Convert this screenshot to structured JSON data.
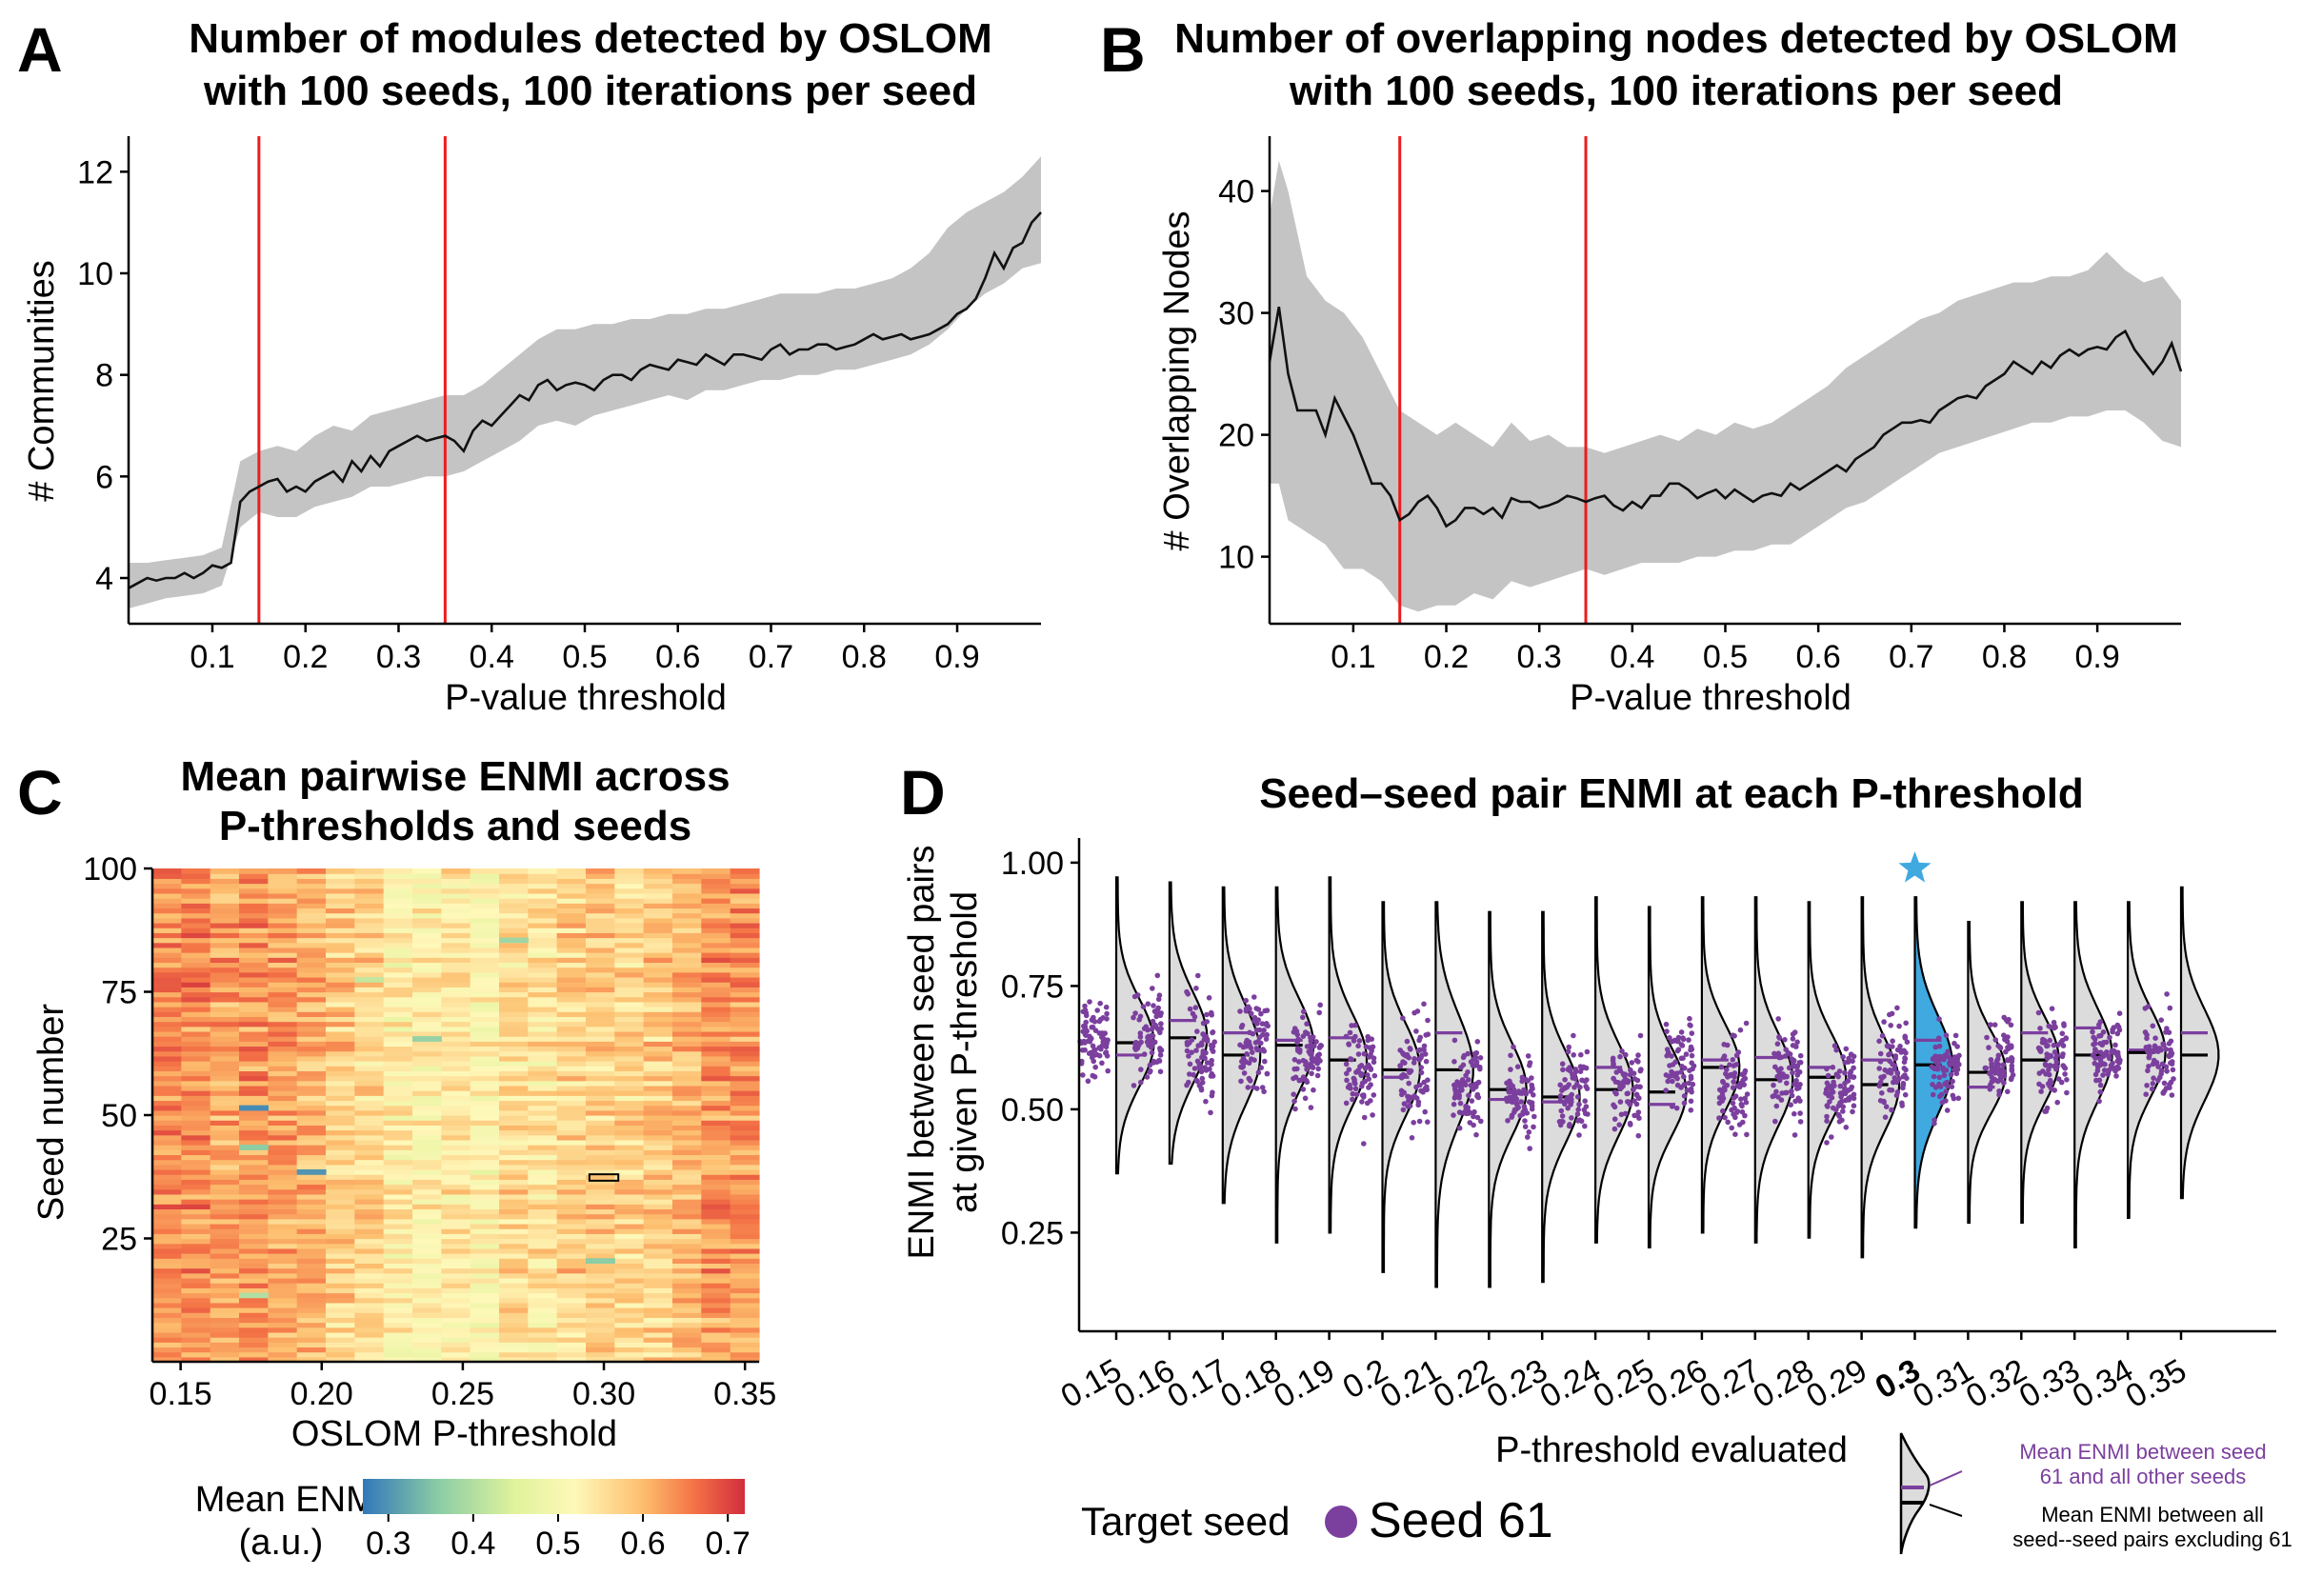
{
  "chart_data": [
    {
      "panel": "A",
      "type": "line",
      "title_lines": [
        "Number of modules detected by OSLOM",
        "with 100 seeds, 100 iterations per seed"
      ],
      "xlabel": "P-value threshold",
      "ylabel": "# Communities",
      "xlim": [
        0.01,
        0.99
      ],
      "ylim": [
        3.1,
        12.7
      ],
      "xticks": [
        "0.1",
        "0.2",
        "0.3",
        "0.4",
        "0.5",
        "0.6",
        "0.7",
        "0.8",
        "0.9"
      ],
      "yticks": [
        "4",
        "6",
        "8",
        "10",
        "12"
      ],
      "vlines": [
        0.15,
        0.35
      ],
      "band": {
        "x": [
          0.01,
          0.03,
          0.05,
          0.07,
          0.09,
          0.11,
          0.13,
          0.15,
          0.17,
          0.19,
          0.21,
          0.23,
          0.25,
          0.27,
          0.29,
          0.31,
          0.33,
          0.35,
          0.37,
          0.39,
          0.41,
          0.43,
          0.45,
          0.47,
          0.49,
          0.51,
          0.53,
          0.55,
          0.57,
          0.59,
          0.61,
          0.63,
          0.65,
          0.67,
          0.69,
          0.71,
          0.73,
          0.75,
          0.77,
          0.79,
          0.81,
          0.83,
          0.85,
          0.87,
          0.89,
          0.91,
          0.93,
          0.95,
          0.97,
          0.99
        ],
        "upper": [
          4.3,
          4.3,
          4.35,
          4.4,
          4.45,
          4.6,
          6.3,
          6.5,
          6.6,
          6.5,
          6.8,
          7.0,
          6.9,
          7.2,
          7.3,
          7.4,
          7.5,
          7.6,
          7.6,
          7.8,
          8.1,
          8.4,
          8.7,
          8.9,
          8.9,
          9.0,
          9.0,
          9.1,
          9.1,
          9.2,
          9.2,
          9.3,
          9.3,
          9.4,
          9.5,
          9.6,
          9.6,
          9.6,
          9.7,
          9.7,
          9.8,
          9.9,
          10.1,
          10.4,
          10.9,
          11.2,
          11.4,
          11.6,
          11.9,
          12.3
        ],
        "lower": [
          3.4,
          3.5,
          3.6,
          3.65,
          3.7,
          3.85,
          5.0,
          5.3,
          5.2,
          5.2,
          5.4,
          5.5,
          5.6,
          5.8,
          5.8,
          5.9,
          6.0,
          6.0,
          6.1,
          6.3,
          6.5,
          6.7,
          7.0,
          7.1,
          7.0,
          7.2,
          7.3,
          7.4,
          7.5,
          7.6,
          7.5,
          7.7,
          7.7,
          7.8,
          7.9,
          7.9,
          8.0,
          8.0,
          8.1,
          8.1,
          8.2,
          8.3,
          8.4,
          8.6,
          8.9,
          9.3,
          9.6,
          9.8,
          10.1,
          10.2
        ]
      },
      "mean": {
        "x": [
          0.01,
          0.02,
          0.03,
          0.04,
          0.05,
          0.06,
          0.07,
          0.08,
          0.09,
          0.1,
          0.11,
          0.12,
          0.13,
          0.14,
          0.15,
          0.16,
          0.17,
          0.18,
          0.19,
          0.2,
          0.21,
          0.22,
          0.23,
          0.24,
          0.25,
          0.26,
          0.27,
          0.28,
          0.29,
          0.3,
          0.31,
          0.32,
          0.33,
          0.34,
          0.35,
          0.36,
          0.37,
          0.38,
          0.39,
          0.4,
          0.41,
          0.42,
          0.43,
          0.44,
          0.45,
          0.46,
          0.47,
          0.48,
          0.49,
          0.5,
          0.51,
          0.52,
          0.53,
          0.54,
          0.55,
          0.56,
          0.57,
          0.58,
          0.59,
          0.6,
          0.61,
          0.62,
          0.63,
          0.64,
          0.65,
          0.66,
          0.67,
          0.68,
          0.69,
          0.7,
          0.71,
          0.72,
          0.73,
          0.74,
          0.75,
          0.76,
          0.77,
          0.78,
          0.79,
          0.8,
          0.81,
          0.82,
          0.83,
          0.84,
          0.85,
          0.86,
          0.87,
          0.88,
          0.89,
          0.9,
          0.91,
          0.92,
          0.93,
          0.94,
          0.95,
          0.96,
          0.97,
          0.98,
          0.99
        ],
        "y": [
          3.8,
          3.9,
          4.0,
          3.95,
          4.0,
          4.0,
          4.1,
          4.0,
          4.1,
          4.25,
          4.2,
          4.3,
          5.5,
          5.7,
          5.8,
          5.9,
          5.95,
          5.7,
          5.8,
          5.7,
          5.9,
          6.0,
          6.1,
          5.9,
          6.3,
          6.1,
          6.4,
          6.2,
          6.5,
          6.6,
          6.7,
          6.8,
          6.7,
          6.75,
          6.8,
          6.7,
          6.5,
          6.9,
          7.1,
          7.0,
          7.2,
          7.4,
          7.6,
          7.5,
          7.8,
          7.9,
          7.7,
          7.8,
          7.85,
          7.8,
          7.7,
          7.9,
          8.0,
          8.0,
          7.9,
          8.1,
          8.2,
          8.15,
          8.1,
          8.3,
          8.25,
          8.2,
          8.4,
          8.3,
          8.2,
          8.4,
          8.4,
          8.35,
          8.3,
          8.5,
          8.6,
          8.4,
          8.5,
          8.5,
          8.6,
          8.6,
          8.5,
          8.55,
          8.6,
          8.7,
          8.8,
          8.7,
          8.75,
          8.8,
          8.7,
          8.75,
          8.8,
          8.9,
          9.0,
          9.2,
          9.3,
          9.5,
          9.9,
          10.4,
          10.1,
          10.5,
          10.6,
          11.0,
          11.2
        ]
      }
    },
    {
      "panel": "B",
      "type": "line",
      "title_lines": [
        "Number of overlapping nodes detected by OSLOM",
        "with 100 seeds, 100 iterations per seed"
      ],
      "xlabel": "P-value threshold",
      "ylabel": "# Overlapping Nodes",
      "xlim": [
        0.01,
        0.99
      ],
      "ylim": [
        4.5,
        44.5
      ],
      "xticks": [
        "0.1",
        "0.2",
        "0.3",
        "0.4",
        "0.5",
        "0.6",
        "0.7",
        "0.8",
        "0.9"
      ],
      "yticks": [
        "10",
        "20",
        "30",
        "40"
      ],
      "vlines": [
        0.15,
        0.35
      ],
      "band": {
        "x": [
          0.01,
          0.02,
          0.03,
          0.05,
          0.07,
          0.09,
          0.11,
          0.13,
          0.15,
          0.17,
          0.19,
          0.21,
          0.23,
          0.25,
          0.27,
          0.29,
          0.31,
          0.33,
          0.35,
          0.37,
          0.39,
          0.41,
          0.43,
          0.45,
          0.47,
          0.49,
          0.51,
          0.53,
          0.55,
          0.57,
          0.59,
          0.61,
          0.63,
          0.65,
          0.67,
          0.69,
          0.71,
          0.73,
          0.75,
          0.77,
          0.79,
          0.81,
          0.83,
          0.85,
          0.87,
          0.89,
          0.91,
          0.93,
          0.95,
          0.97,
          0.99
        ],
        "upper": [
          38,
          42.5,
          40,
          33,
          31,
          30,
          28,
          25,
          22,
          21,
          20,
          21,
          20,
          19,
          21,
          19.5,
          20,
          19,
          19,
          18.5,
          19,
          19.5,
          20,
          19.5,
          20.5,
          20,
          21,
          20.5,
          21,
          22,
          23,
          24,
          25.5,
          26.5,
          27.5,
          28.5,
          29.5,
          30,
          31,
          31.5,
          32,
          32.5,
          32.5,
          33,
          33,
          33.5,
          35,
          33.5,
          32.5,
          33,
          31
        ],
        "lower": [
          16,
          16,
          13,
          12,
          11,
          9,
          9,
          8,
          6,
          5.5,
          6,
          6,
          7,
          6.5,
          8,
          7.5,
          8,
          8.5,
          9,
          8.5,
          9,
          9.5,
          9.5,
          9.5,
          10,
          10,
          10.5,
          10.5,
          11,
          11,
          12,
          13,
          14,
          14.5,
          15.5,
          16.5,
          17.5,
          18.5,
          19,
          19.5,
          20,
          20.5,
          21,
          21,
          21.5,
          21.5,
          22,
          22,
          21,
          19.5,
          19
        ]
      },
      "mean": {
        "x": [
          0.01,
          0.02,
          0.03,
          0.04,
          0.05,
          0.06,
          0.07,
          0.08,
          0.09,
          0.1,
          0.11,
          0.12,
          0.13,
          0.14,
          0.15,
          0.16,
          0.17,
          0.18,
          0.19,
          0.2,
          0.21,
          0.22,
          0.23,
          0.24,
          0.25,
          0.26,
          0.27,
          0.28,
          0.29,
          0.3,
          0.31,
          0.32,
          0.33,
          0.34,
          0.35,
          0.36,
          0.37,
          0.38,
          0.39,
          0.4,
          0.41,
          0.42,
          0.43,
          0.44,
          0.45,
          0.46,
          0.47,
          0.48,
          0.49,
          0.5,
          0.51,
          0.52,
          0.53,
          0.54,
          0.55,
          0.56,
          0.57,
          0.58,
          0.59,
          0.6,
          0.61,
          0.62,
          0.63,
          0.64,
          0.65,
          0.66,
          0.67,
          0.68,
          0.69,
          0.7,
          0.71,
          0.72,
          0.73,
          0.74,
          0.75,
          0.76,
          0.77,
          0.78,
          0.79,
          0.8,
          0.81,
          0.82,
          0.83,
          0.84,
          0.85,
          0.86,
          0.87,
          0.88,
          0.89,
          0.9,
          0.91,
          0.92,
          0.93,
          0.94,
          0.95,
          0.96,
          0.97,
          0.98,
          0.99
        ],
        "y": [
          26,
          30.5,
          25,
          22,
          22,
          22,
          20,
          23,
          21.5,
          20,
          18,
          16,
          16,
          15,
          13,
          13.5,
          14.5,
          15,
          14,
          12.5,
          13,
          14,
          14,
          13.5,
          14,
          13.2,
          14.8,
          14.5,
          14.5,
          14,
          14.2,
          14.5,
          15,
          14.8,
          14.5,
          14.8,
          15,
          14.2,
          13.8,
          14.5,
          14,
          15,
          15,
          16,
          16,
          15.5,
          14.8,
          15.2,
          15.5,
          14.8,
          15.5,
          15,
          14.5,
          15,
          15.2,
          15,
          16,
          15.5,
          16,
          16.5,
          17,
          17.5,
          17,
          18,
          18.5,
          19,
          20,
          20.5,
          21,
          21,
          21.2,
          21,
          22,
          22.5,
          23,
          23.2,
          23,
          24,
          24.5,
          25,
          26,
          25.5,
          25,
          26,
          25.5,
          26.5,
          27,
          26.5,
          27,
          27.2,
          27,
          28,
          28.5,
          27,
          26,
          25,
          26,
          27.5,
          25.2
        ]
      }
    },
    {
      "panel": "C",
      "type": "heatmap",
      "title_lines": [
        "Mean pairwise ENMI across",
        "P-thresholds and seeds"
      ],
      "xlabel": "OSLOM P-threshold",
      "ylabel": "Seed number",
      "xticks": [
        "0.15",
        "0.20",
        "0.25",
        "0.30",
        "0.35"
      ],
      "yticks": [
        "25",
        "50",
        "75",
        "100"
      ],
      "x_range": [
        0.14,
        0.355
      ],
      "n_cols": 21,
      "n_rows": 100,
      "column_mean_enmi": [
        0.64,
        0.64,
        0.62,
        0.63,
        0.62,
        0.61,
        0.58,
        0.57,
        0.53,
        0.53,
        0.54,
        0.52,
        0.56,
        0.55,
        0.57,
        0.58,
        0.57,
        0.58,
        0.6,
        0.63,
        0.63
      ],
      "highlight_cell": {
        "p_threshold": 0.3,
        "seed": 38
      },
      "colorbar": {
        "label_lines": [
          "Mean ENMI",
          "(a.u.)"
        ],
        "ticks": [
          "0.3",
          "0.4",
          "0.5",
          "0.6",
          "0.7"
        ],
        "range": [
          0.27,
          0.72
        ]
      }
    },
    {
      "panel": "D",
      "type": "violin",
      "title": "Seed–seed pair ENMI at each P-threshold",
      "xlabel": "P-threshold evaluated",
      "ylabel_lines": [
        "ENMI between seed pairs",
        "at given P-threshold"
      ],
      "categories": [
        "0.15",
        "0.16",
        "0.17",
        "0.18",
        "0.19",
        "0.2",
        "0.21",
        "0.22",
        "0.23",
        "0.24",
        "0.25",
        "0.26",
        "0.27",
        "0.28",
        "0.29",
        "0.3",
        "0.31",
        "0.32",
        "0.33",
        "0.34",
        "0.35"
      ],
      "highlight_category": "0.3",
      "ylim": [
        0.05,
        1.05
      ],
      "yticks": [
        "0.25",
        "0.50",
        "0.75",
        "1.00"
      ],
      "mean_all_pairs": [
        0.635,
        0.645,
        0.61,
        0.63,
        0.6,
        0.58,
        0.58,
        0.54,
        0.525,
        0.54,
        0.535,
        0.585,
        0.56,
        0.565,
        0.55,
        0.59,
        0.575,
        0.6,
        0.61,
        0.615,
        0.61
      ],
      "mean_seed61": [
        0.61,
        0.68,
        0.655,
        0.64,
        0.645,
        0.565,
        0.655,
        0.52,
        0.515,
        0.585,
        0.51,
        0.6,
        0.605,
        0.585,
        0.6,
        0.64,
        0.545,
        0.655,
        0.665,
        0.62,
        0.655
      ],
      "spread": [
        0.08,
        0.085,
        0.09,
        0.085,
        0.085,
        0.085,
        0.1,
        0.085,
        0.085,
        0.085,
        0.08,
        0.08,
        0.085,
        0.08,
        0.085,
        0.09,
        0.075,
        0.08,
        0.085,
        0.08,
        0.085
      ],
      "min": [
        0.37,
        0.39,
        0.31,
        0.23,
        0.25,
        0.17,
        0.14,
        0.14,
        0.15,
        0.23,
        0.22,
        0.25,
        0.23,
        0.24,
        0.2,
        0.26,
        0.27,
        0.27,
        0.22,
        0.28,
        0.32
      ],
      "max": [
        0.97,
        0.96,
        0.95,
        0.95,
        0.97,
        0.92,
        0.92,
        0.9,
        0.9,
        0.93,
        0.91,
        0.93,
        0.93,
        0.92,
        0.93,
        0.93,
        0.88,
        0.92,
        0.92,
        0.92,
        0.95
      ],
      "legend_title": "Target seed",
      "legend_label": "Seed 61",
      "colors": {
        "seed": "#7b3f9e",
        "highlight_violin": "#3fa9e0",
        "violin_fill": "#dcdcdc"
      },
      "annotations": {
        "purple_line": [
          "Mean ENMI between seed",
          "61 and all other seeds"
        ],
        "black_line": [
          "Mean ENMI between all",
          "seed--seed pairs excluding 61"
        ]
      }
    }
  ],
  "panels": {
    "A": {
      "letter": "A"
    },
    "B": {
      "letter": "B"
    },
    "C": {
      "letter": "C"
    },
    "D": {
      "letter": "D"
    }
  },
  "colors": {
    "vline": "#ee1c1c",
    "band": "#c4c4c4",
    "line": "#111111"
  }
}
